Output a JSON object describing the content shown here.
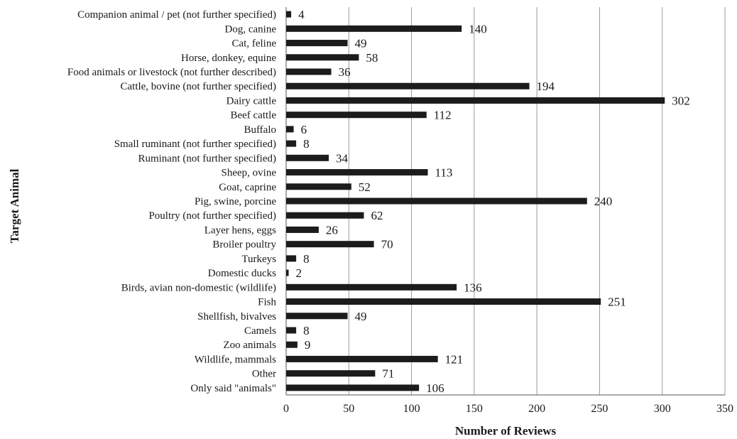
{
  "chart_data": {
    "type": "bar",
    "orientation": "horizontal",
    "xlabel": "Number of Reviews",
    "ylabel": "Target Animal",
    "xlim": [
      0,
      350
    ],
    "xticks": [
      0,
      50,
      100,
      150,
      200,
      250,
      300,
      350
    ],
    "grid": "vertical",
    "legend": "none",
    "categories": [
      "Companion animal / pet (not further specified)",
      "Dog, canine",
      "Cat, feline",
      "Horse, donkey, equine",
      "Food animals or livestock (not further described)",
      "Cattle, bovine (not further specified)",
      "Dairy cattle",
      "Beef cattle",
      "Buffalo",
      "Small ruminant (not further specified)",
      "Ruminant (not further specified)",
      "Sheep, ovine",
      "Goat, caprine",
      "Pig, swine, porcine",
      "Poultry (not further specified)",
      "Layer hens, eggs",
      "Broiler poultry",
      "Turkeys",
      "Domestic ducks",
      "Birds, avian non-domestic (wildlife)",
      "Fish",
      "Shellfish, bivalves",
      "Camels",
      "Zoo animals",
      "Wildlife, mammals",
      "Other",
      "Only said \"animals\""
    ],
    "values": [
      4,
      140,
      49,
      58,
      36,
      194,
      302,
      112,
      6,
      8,
      34,
      113,
      52,
      240,
      62,
      26,
      70,
      8,
      2,
      136,
      251,
      49,
      8,
      9,
      121,
      71,
      106
    ],
    "bar_color": "#1c1c1c"
  }
}
